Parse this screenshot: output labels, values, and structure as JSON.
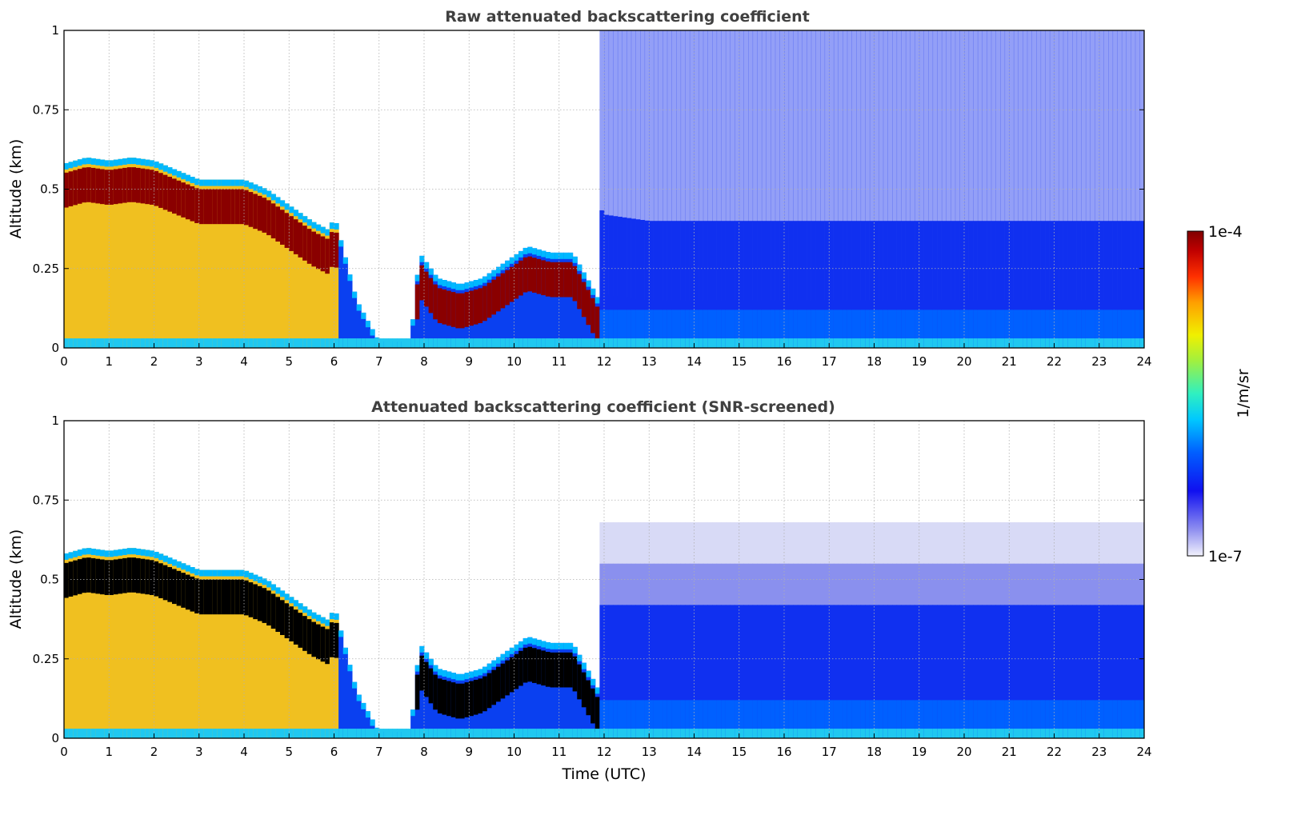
{
  "chart_data": [
    {
      "type": "heatmap",
      "title": "Raw attenuated backscattering coefficient",
      "xlabel": "",
      "ylabel": "Altitude (km)",
      "xlim": [
        0,
        24
      ],
      "ylim": [
        0,
        1
      ],
      "xticks": [
        "0",
        "1",
        "2",
        "3",
        "4",
        "5",
        "6",
        "7",
        "8",
        "9",
        "10",
        "11",
        "12",
        "13",
        "14",
        "15",
        "16",
        "17",
        "18",
        "19",
        "20",
        "21",
        "22",
        "23",
        "24"
      ],
      "yticks": [
        "0",
        "0.25",
        "0.5",
        "0.75",
        "1"
      ],
      "grid": true,
      "screened": false
    },
    {
      "type": "heatmap",
      "title": "Attenuated backscattering coefficient (SNR-screened)",
      "xlabel": "Time (UTC)",
      "ylabel": "Altitude (km)",
      "xlim": [
        0,
        24
      ],
      "ylim": [
        0,
        1
      ],
      "xticks": [
        "0",
        "1",
        "2",
        "3",
        "4",
        "5",
        "6",
        "7",
        "8",
        "9",
        "10",
        "11",
        "12",
        "13",
        "14",
        "15",
        "16",
        "17",
        "18",
        "19",
        "20",
        "21",
        "22",
        "23",
        "24"
      ],
      "yticks": [
        "0",
        "0.25",
        "0.5",
        "0.75",
        "1"
      ],
      "grid": true,
      "screened": true
    }
  ],
  "colorbar": {
    "label": "1/m/sr",
    "max_label": "1e-4",
    "min_label": "1e-7",
    "scale": "log",
    "range": [
      1e-07,
      0.0001
    ]
  },
  "layer_profile": {
    "hours": [
      0,
      0.5,
      1,
      1.5,
      2,
      2.5,
      3,
      3.5,
      4,
      4.5,
      5,
      5.5,
      5.9,
      6.0,
      6.5,
      7.0,
      7.7,
      7.9,
      8.3,
      8.8,
      9.3,
      9.8,
      10.3,
      10.8,
      11.3,
      11.7,
      12.0,
      13.0,
      16.0,
      20.0,
      24.0
    ],
    "top_km": [
      0.58,
      0.6,
      0.59,
      0.6,
      0.59,
      0.56,
      0.53,
      0.53,
      0.53,
      0.5,
      0.45,
      0.4,
      0.37,
      0.42,
      0.15,
      0.02,
      0.02,
      0.3,
      0.22,
      0.2,
      0.22,
      0.27,
      0.32,
      0.3,
      0.3,
      0.2,
      0.12,
      0.1,
      0.1,
      0.1,
      0.1
    ]
  }
}
